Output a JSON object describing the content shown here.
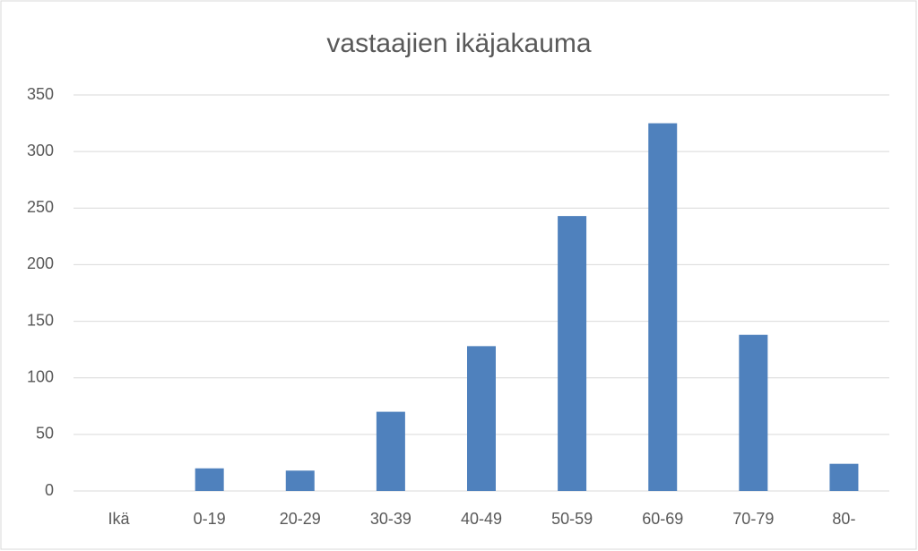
{
  "chart_data": {
    "type": "bar",
    "title": "vastaajien ikäjakauma",
    "categories": [
      "Ikä",
      "0-19",
      "20-29",
      "30-39",
      "40-49",
      "50-59",
      "60-69",
      "70-79",
      "80-"
    ],
    "values": [
      null,
      20,
      18,
      70,
      128,
      243,
      325,
      138,
      24
    ],
    "color": "#4f81bd",
    "ylim": [
      0,
      350
    ],
    "yticks": [
      0,
      50,
      100,
      150,
      200,
      250,
      300,
      350
    ],
    "grid": true
  }
}
